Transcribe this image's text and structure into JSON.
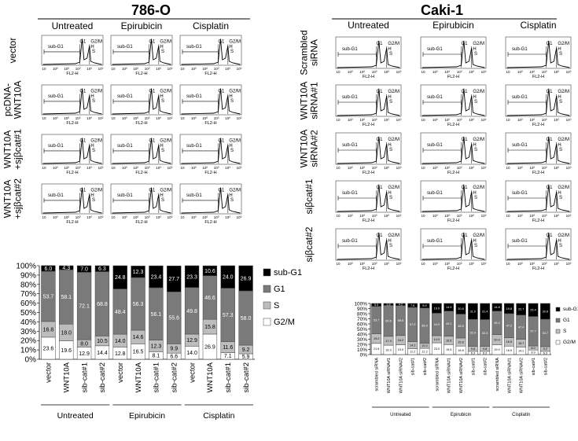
{
  "left": {
    "title": "786-O",
    "col_headers": [
      "Untreated",
      "Epirubicin",
      "Cisplatin"
    ],
    "row_labels": [
      [
        "vector"
      ],
      [
        "pcDNA-",
        "WNT10A"
      ],
      [
        "WNT10A",
        "+sjβcat#1"
      ],
      [
        "WNT10A",
        "+sjβcat#2"
      ]
    ]
  },
  "right": {
    "title": "Caki-1",
    "col_headers": [
      "Untreated",
      "Epirubicin",
      "Cisplatin"
    ],
    "row_labels": [
      [
        "Scrambled",
        "siRNA"
      ],
      [
        "WNT10A",
        "siRNA#1"
      ],
      [
        "WNT10A",
        "siRNA#2"
      ],
      [
        "siβcat#1"
      ],
      [
        "siβcat#2"
      ]
    ]
  },
  "histogram_labels": {
    "sub_g1": "sub-G1",
    "g1": "G1",
    "g2m": "G2/M",
    "h": "H",
    "s": "S",
    "xaxis": "FL2-H"
  },
  "chart_data": [
    {
      "type": "bar",
      "stacked": true,
      "panel": "786-O",
      "ytick_labels": [
        "0%",
        "10%",
        "20%",
        "30%",
        "40%",
        "50%",
        "60%",
        "70%",
        "80%",
        "90%",
        "100%"
      ],
      "ylim": [
        0,
        100
      ],
      "categories": [
        "vector",
        "WNT10A",
        "sib-cat#1",
        "sib-cat#2",
        "vector",
        "WNT10A",
        "sib-cat#1",
        "sib-cat#2",
        "vector",
        "WNT10A",
        "sib-cat#1",
        "sib-cat#2"
      ],
      "groups": [
        "Untreated",
        "Epirubicin",
        "Cisplatin"
      ],
      "series": [
        {
          "name": "G2/M",
          "color": "#ffffff",
          "values": [
            23.6,
            19.6,
            12.9,
            14.4,
            12.8,
            16.5,
            8.1,
            6.6,
            14.0,
            26.9,
            7.1,
            5.9
          ]
        },
        {
          "name": "S",
          "color": "#bdbdbd",
          "values": [
            16.8,
            18.0,
            8.0,
            10.5,
            14.0,
            14.6,
            12.3,
            9.9,
            12.9,
            15.8,
            11.6,
            9.2
          ]
        },
        {
          "name": "G1",
          "color": "#7a7a7a",
          "values": [
            53.7,
            58.1,
            72.1,
            68.8,
            48.4,
            56.3,
            56.1,
            55.6,
            49.8,
            46.6,
            57.3,
            58.0
          ]
        },
        {
          "name": "sub-G1",
          "color": "#000000",
          "values": [
            6.0,
            4.3,
            7.0,
            6.3,
            24.8,
            12.3,
            23.4,
            27.7,
            23.3,
            10.6,
            24.0,
            26.9
          ]
        }
      ]
    },
    {
      "type": "bar",
      "stacked": true,
      "panel": "Caki-1",
      "ytick_labels": [
        "0%",
        "10%",
        "20%",
        "30%",
        "40%",
        "50%",
        "60%",
        "70%",
        "80%",
        "90%",
        "100%"
      ],
      "ylim": [
        0,
        100
      ],
      "categories": [
        "scrambled siRNA",
        "WNT10A siRNA#1",
        "WNT10A siRNA#2",
        "sib-cat#1",
        "sib-cat#2",
        "scrambled siRNA",
        "WNT10A siRNA#1",
        "WNT10A siRNA#2",
        "sib-cat#1",
        "sib-cat#2",
        "scrambled siRNA",
        "WNT10A siRNA#1",
        "WNT10A siRNA#2",
        "sib-cat#1",
        "sib-cat#2"
      ],
      "groups": [
        "Untreated",
        "Epirubicin",
        "Cisplatin"
      ],
      "series": [
        {
          "name": "G2/M",
          "color": "#ffffff",
          "values": [
            21.8,
            18.3,
            19.0,
            11.2,
            12.2,
            23.0,
            19.5,
            16.6,
            6.3,
            6.3,
            19.0,
            16.5,
            14.2,
            8.9,
            6.3
          ]
        },
        {
          "name": "S",
          "color": "#bdbdbd",
          "values": [
            19.0,
            17.3,
            18.2,
            14.2,
            10.0,
            14.0,
            16.5,
            15.8,
            9.8,
            9.8,
            20.0,
            16.5,
            15.7,
            8.0,
            9.2
          ]
        },
        {
          "name": "G1",
          "color": "#7a7a7a",
          "values": [
            53.7,
            60.6,
            58.6,
            67.0,
            68.9,
            44.0,
            49.1,
            46.8,
            52.9,
            52.5,
            46.2,
            47.2,
            47.4,
            57.7,
            53.7
          ]
        },
        {
          "name": "sub-G1",
          "color": "#000000",
          "values": [
            5.5,
            3.8,
            4.2,
            7.6,
            8.9,
            19.0,
            14.9,
            20.8,
            31.0,
            31.4,
            14.8,
            19.8,
            22.7,
            25.4,
            30.8
          ]
        }
      ]
    }
  ]
}
